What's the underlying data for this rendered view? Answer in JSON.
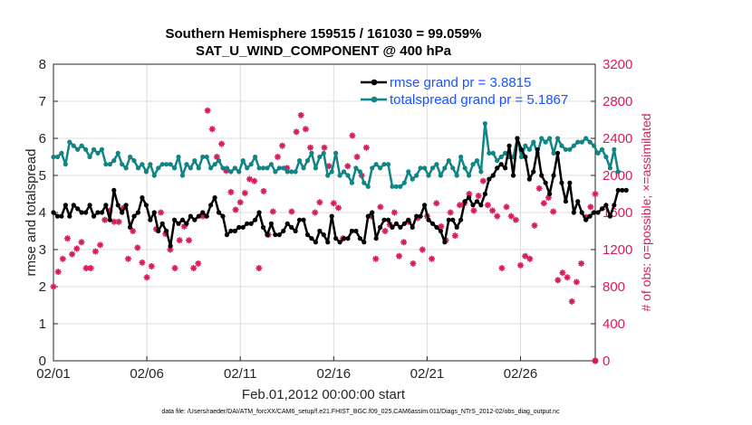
{
  "chart_data": {
    "type": "line",
    "title": "Southern Hemisphere 159515 / 161030 = 99.059%",
    "subtitle": "SAT_U_WIND_COMPONENT @ 400 hPa",
    "xlabel": "Feb.01,2012 00:00:00 start",
    "ylabel": "rmse and totalspread",
    "ylabel_right": "# of obs: o=possible; ×=assimilated",
    "xlim": [
      0,
      116
    ],
    "ylim": [
      0,
      8
    ],
    "ylim_right": [
      0,
      3200
    ],
    "x_ticks": [
      0,
      20,
      40,
      60,
      80,
      100
    ],
    "x_tick_labels": [
      "02/01",
      "02/06",
      "02/11",
      "02/16",
      "02/21",
      "02/26"
    ],
    "y_ticks": [
      "0",
      "1",
      "2",
      "3",
      "4",
      "5",
      "6",
      "7",
      "8"
    ],
    "y_ticks_right": [
      "0",
      "400",
      "800",
      "1200",
      "1600",
      "2000",
      "2400",
      "2800",
      "3200"
    ],
    "grid": true,
    "legend": [
      "rmse grand pr = 3.8815",
      "totalspread grand pr = 5.1867"
    ],
    "legend_position": "top-right",
    "colors": {
      "rmse": "#000000",
      "totalspread": "#0f8585",
      "obs": "#d81b60",
      "legend_text": "#1a53ff"
    },
    "footnote": "data file: /Users/raeder/DAI/ATM_forcXX/CAM6_setup/f.e21.FHIST_BGC.f09_025.CAM6assim.011/Diags_NTrS_2012-02/obs_diag_output.nc",
    "series": [
      {
        "name": "rmse",
        "color": "#000000",
        "values": [
          4.0,
          3.9,
          3.9,
          4.2,
          3.9,
          4.2,
          4.1,
          4.0,
          4.0,
          4.2,
          3.9,
          4.0,
          4.0,
          4.2,
          3.8,
          4.6,
          4.2,
          4.0,
          4.2,
          3.6,
          3.9,
          4.0,
          4.4,
          4.2,
          3.8,
          4.0,
          3.5,
          3.7,
          3.5,
          3.1,
          3.8,
          3.7,
          3.8,
          3.7,
          3.9,
          3.8,
          3.9,
          4.0,
          3.9,
          4.2,
          4.4,
          4.0,
          3.9,
          3.4,
          3.5,
          3.5,
          3.6,
          3.6,
          3.7,
          3.7,
          3.8,
          4.0,
          3.6,
          3.4,
          3.7,
          3.4,
          3.4,
          3.5,
          3.7,
          3.6,
          3.5,
          3.8,
          3.8,
          3.4,
          3.3,
          3.2,
          3.5,
          3.4,
          3.2,
          3.9,
          3.3,
          3.2,
          3.3,
          3.3,
          3.5,
          3.5,
          3.3,
          3.2,
          3.9,
          4.0,
          3.3,
          3.6,
          3.8,
          3.8,
          3.6,
          3.7,
          3.6,
          3.7,
          3.8,
          3.6,
          3.9,
          3.9,
          4.2,
          3.8,
          3.7,
          3.6,
          3.5,
          3.2,
          3.8,
          3.8,
          3.6,
          3.8,
          4.3,
          4.4,
          4.2,
          4.3,
          4.2,
          4.5,
          4.9,
          5.0,
          5.2,
          5.3,
          5.2,
          5.8,
          5.0,
          6.0,
          5.7,
          5.5,
          4.9,
          5.1,
          5.7,
          5.0,
          4.8,
          4.5,
          5.0,
          5.6,
          4.8,
          4.3,
          4.8,
          4.0,
          4.3,
          4.0,
          3.8,
          3.9,
          4.0,
          4.0,
          4.1,
          4.2,
          3.9,
          4.2,
          4.6,
          4.6,
          4.6
        ],
        "x_step": 0.8636
      },
      {
        "name": "totalspread",
        "color": "#0f8585",
        "values": [
          5.5,
          5.5,
          5.6,
          5.3,
          5.9,
          5.8,
          5.7,
          5.8,
          5.7,
          5.5,
          5.7,
          5.6,
          5.7,
          5.3,
          5.3,
          5.4,
          5.6,
          5.3,
          5.2,
          5.5,
          5.4,
          5.2,
          5.3,
          5.1,
          5.3,
          5.0,
          5.2,
          5.3,
          5.3,
          5.3,
          5.2,
          5.5,
          5.0,
          5.3,
          5.2,
          5.4,
          5.2,
          5.5,
          5.5,
          5.2,
          5.3,
          5.4,
          5.2,
          5.2,
          5.1,
          5.2,
          5.1,
          5.4,
          5.2,
          5.3,
          5.5,
          5.2,
          5.2,
          5.2,
          5.3,
          5.1,
          5.2,
          5.2,
          5.1,
          5.1,
          5.1,
          5.4,
          5.2,
          5.4,
          5.6,
          5.2,
          5.5,
          5.6,
          5.0,
          5.1,
          5.6,
          5.0,
          5.1,
          5.0,
          4.8,
          5.2,
          5.1,
          4.8,
          4.7,
          5.2,
          5.3,
          5.2,
          5.3,
          5.3,
          4.7,
          4.7,
          4.7,
          4.8,
          5.1,
          4.9,
          5.0,
          5.2,
          5.2,
          5.0,
          5.2,
          5.3,
          5.0,
          5.2,
          5.4,
          5.2,
          5.0,
          5.5,
          5.2,
          5.0,
          5.3,
          5.4,
          5.1,
          6.4,
          5.6,
          5.6,
          5.4,
          5.5,
          5.6,
          5.5,
          5.5,
          6.0,
          5.5,
          5.8,
          5.7,
          5.9,
          5.6,
          6.0,
          5.9,
          6.0,
          5.6,
          6.0,
          5.8,
          5.7,
          5.7,
          5.8,
          5.9,
          5.9,
          6.0,
          5.9,
          5.8,
          5.6,
          5.7,
          5.5,
          5.2,
          5.7,
          5.1
        ],
        "x_step": 0.8636
      },
      {
        "name": "obs_assimilated",
        "color": "#d81b60",
        "axis": "right",
        "x": [
          0,
          1,
          2,
          3,
          4,
          5,
          6,
          7,
          8,
          9,
          10,
          11,
          12,
          13,
          14,
          15,
          16,
          17,
          18,
          19,
          20,
          21,
          22,
          23,
          24,
          25,
          26,
          27,
          28,
          29,
          30,
          31,
          32,
          33,
          34,
          35,
          36,
          37,
          38,
          39,
          40,
          41,
          42,
          43,
          44,
          45,
          46,
          47,
          48,
          49,
          50,
          51,
          52,
          53,
          54,
          55,
          56,
          57,
          58,
          59,
          60,
          61,
          62,
          63,
          64,
          65,
          66,
          67,
          68,
          69,
          70,
          71,
          72,
          73,
          74,
          75,
          76,
          77,
          78,
          79,
          80,
          81,
          82,
          83,
          84,
          85,
          86,
          87,
          88,
          89,
          90,
          91,
          92,
          93,
          94,
          95,
          96,
          97,
          98,
          99,
          100,
          101,
          102,
          103,
          104,
          105,
          106,
          107,
          108,
          109,
          110,
          111,
          112,
          113,
          114,
          115,
          116
        ],
        "values": [
          800,
          960,
          1100,
          1320,
          1150,
          1210,
          1280,
          1000,
          1000,
          1180,
          1250,
          1520,
          1620,
          1500,
          1500,
          1650,
          1100,
          1400,
          1220,
          1060,
          900,
          1020,
          1420,
          1600,
          1370,
          1200,
          1000,
          1300,
          1450,
          1300,
          1000,
          1050,
          1560,
          2700,
          2500,
          2200,
          2340,
          2050,
          1820,
          1630,
          1710,
          1810,
          1960,
          1940,
          1000,
          1830,
          1360,
          1610,
          2200,
          2320,
          2080,
          1610,
          2470,
          2650,
          2500,
          2300,
          1600,
          1710,
          2300,
          2100,
          1700,
          1650,
          1320,
          2100,
          2430,
          2200,
          2000,
          2300,
          1560,
          1100,
          1660,
          1400,
          1470,
          1600,
          1130,
          1280,
          1500,
          1050,
          1540,
          1200,
          1560,
          1100,
          1700,
          1450,
          1300,
          1600,
          1350,
          1680,
          1700,
          1800,
          1620,
          1780,
          1940,
          1680,
          1620,
          1560,
          1000,
          1660,
          1560,
          1520,
          1030,
          1130,
          1100,
          1460,
          1860,
          1700,
          1760,
          1610,
          870,
          950,
          900,
          640,
          850,
          1050,
          1550,
          1660,
          1800
        ],
        "x_step": 1.0
      }
    ]
  }
}
